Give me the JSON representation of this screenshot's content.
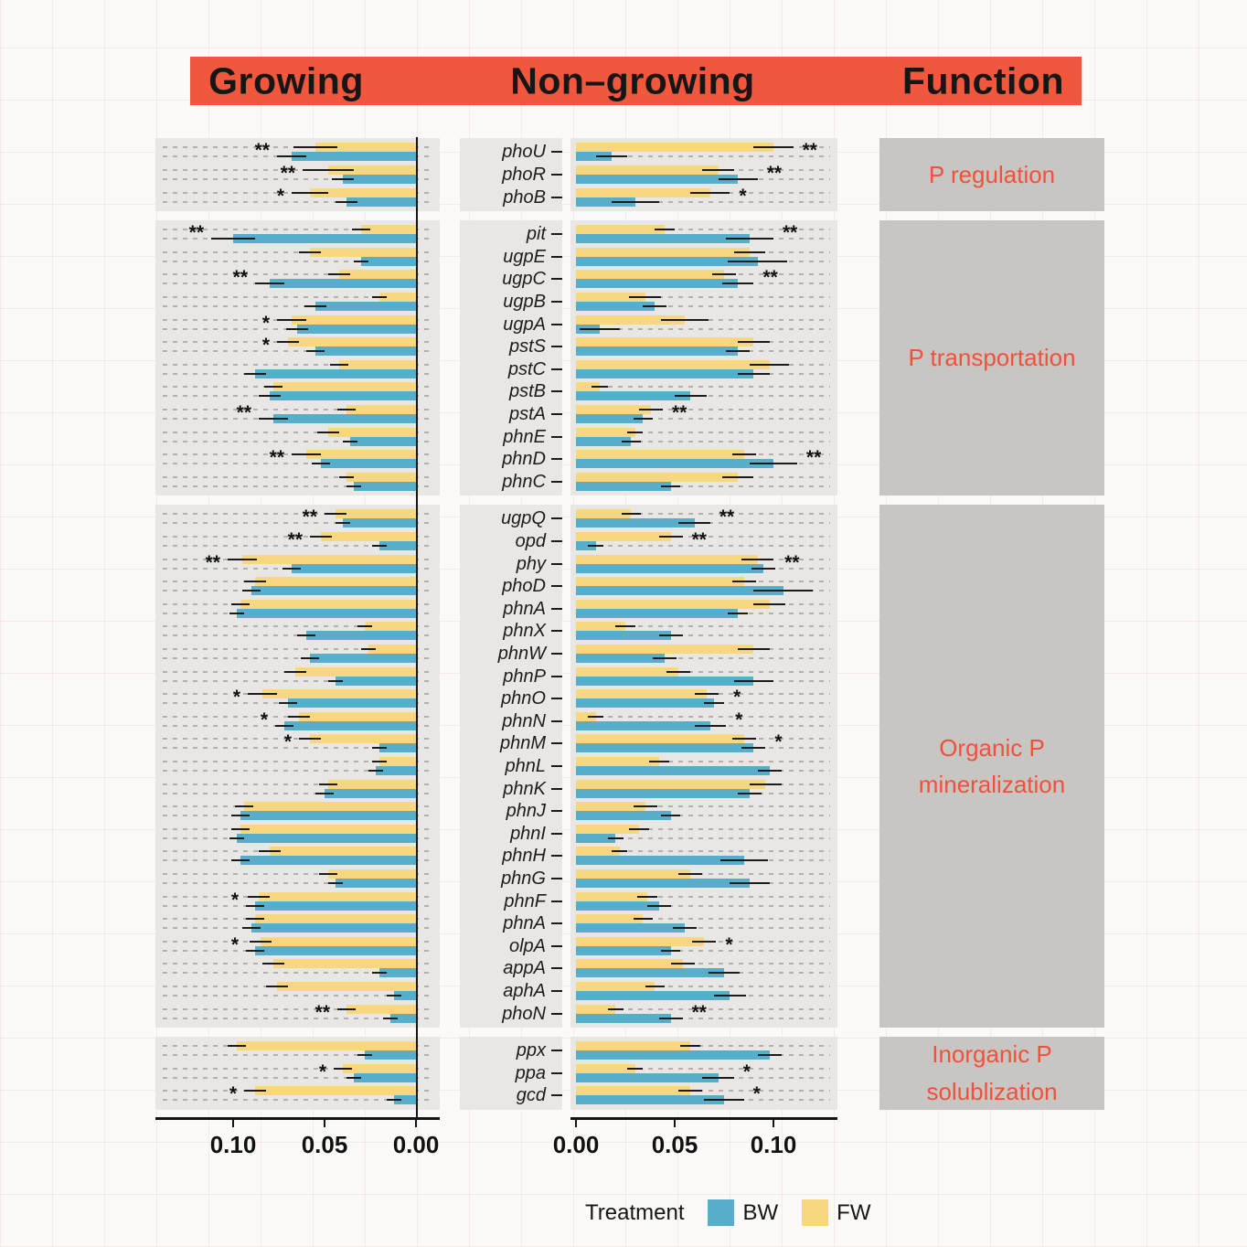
{
  "header": {
    "growing": "Growing",
    "non_growing": "Non–growing",
    "function": "Function"
  },
  "legend": {
    "title": "Treatment",
    "entries": [
      {
        "label": "BW",
        "color": "#57aecb"
      },
      {
        "label": "FW",
        "color": "#f9d77e"
      }
    ]
  },
  "axes": {
    "growing_ticks": [
      "0.10",
      "0.05",
      "0.00"
    ],
    "non_growing_ticks": [
      "0.00",
      "0.05",
      "0.10"
    ]
  },
  "colors": {
    "banner": "#f0573d",
    "panel_bg": "#e9e7e3",
    "function_bg": "#c8c6c3",
    "function_text": "#f2503a",
    "bw": "#57aecb",
    "fw": "#f9d77e",
    "axis": "#151515"
  },
  "chart_data": {
    "type": "bar",
    "orientation": "horizontal",
    "panels": [
      "Growing",
      "Non-growing"
    ],
    "x_max": 0.13,
    "legend_position": "bottom",
    "series": [
      "BW",
      "FW"
    ],
    "significance_note": "* and ** markers shown beyond error bars",
    "groups": [
      {
        "function": "P regulation",
        "genes": [
          {
            "gene": "phoU",
            "growing": {
              "fw": 0.055,
              "fwe": 0.012,
              "bw": 0.068,
              "bwe": 0.008,
              "sig": "**"
            },
            "non_growing": {
              "fw": 0.1,
              "fwe": 0.01,
              "bw": 0.018,
              "bwe": 0.008,
              "sig": "**"
            }
          },
          {
            "gene": "phoR",
            "growing": {
              "fw": 0.048,
              "fwe": 0.014,
              "bw": 0.04,
              "bwe": 0.006,
              "sig": "**"
            },
            "non_growing": {
              "fw": 0.072,
              "fwe": 0.008,
              "bw": 0.082,
              "bwe": 0.01,
              "sig": "**"
            }
          },
          {
            "gene": "phoB",
            "growing": {
              "fw": 0.058,
              "fwe": 0.01,
              "bw": 0.038,
              "bwe": 0.006,
              "sig": "*"
            },
            "non_growing": {
              "fw": 0.068,
              "fwe": 0.01,
              "bw": 0.03,
              "bwe": 0.012,
              "sig": "*"
            }
          }
        ]
      },
      {
        "function": "P transportation",
        "genes": [
          {
            "gene": "pit",
            "growing": {
              "fw": 0.03,
              "fwe": 0.005,
              "bw": 0.1,
              "bwe": 0.012,
              "sig": "**"
            },
            "non_growing": {
              "fw": 0.045,
              "fwe": 0.005,
              "bw": 0.088,
              "bwe": 0.012,
              "sig": "**"
            }
          },
          {
            "gene": "ugpE",
            "growing": {
              "fw": 0.058,
              "fwe": 0.006,
              "bw": 0.03,
              "bwe": 0.004,
              "sig": ""
            },
            "non_growing": {
              "fw": 0.088,
              "fwe": 0.008,
              "bw": 0.092,
              "bwe": 0.015,
              "sig": ""
            }
          },
          {
            "gene": "ugpC",
            "growing": {
              "fw": 0.042,
              "fwe": 0.006,
              "bw": 0.08,
              "bwe": 0.008,
              "sig": "**"
            },
            "non_growing": {
              "fw": 0.075,
              "fwe": 0.006,
              "bw": 0.082,
              "bwe": 0.008,
              "sig": "**"
            }
          },
          {
            "gene": "ugpB",
            "growing": {
              "fw": 0.02,
              "fwe": 0.004,
              "bw": 0.055,
              "bwe": 0.006,
              "sig": ""
            },
            "non_growing": {
              "fw": 0.035,
              "fwe": 0.008,
              "bw": 0.04,
              "bwe": 0.006,
              "sig": ""
            }
          },
          {
            "gene": "ugpA",
            "growing": {
              "fw": 0.068,
              "fwe": 0.008,
              "bw": 0.065,
              "bwe": 0.006,
              "sig": "*"
            },
            "non_growing": {
              "fw": 0.055,
              "fwe": 0.012,
              "bw": 0.012,
              "bwe": 0.01,
              "sig": ""
            }
          },
          {
            "gene": "pstS",
            "growing": {
              "fw": 0.07,
              "fwe": 0.006,
              "bw": 0.055,
              "bwe": 0.005,
              "sig": "*"
            },
            "non_growing": {
              "fw": 0.09,
              "fwe": 0.008,
              "bw": 0.082,
              "bwe": 0.006,
              "sig": ""
            }
          },
          {
            "gene": "pstC",
            "growing": {
              "fw": 0.042,
              "fwe": 0.005,
              "bw": 0.088,
              "bwe": 0.006,
              "sig": ""
            },
            "non_growing": {
              "fw": 0.098,
              "fwe": 0.01,
              "bw": 0.09,
              "bwe": 0.008,
              "sig": ""
            }
          },
          {
            "gene": "pstB",
            "growing": {
              "fw": 0.078,
              "fwe": 0.005,
              "bw": 0.08,
              "bwe": 0.006,
              "sig": ""
            },
            "non_growing": {
              "fw": 0.012,
              "fwe": 0.004,
              "bw": 0.058,
              "bwe": 0.008,
              "sig": ""
            }
          },
          {
            "gene": "pstA",
            "growing": {
              "fw": 0.038,
              "fwe": 0.005,
              "bw": 0.078,
              "bwe": 0.008,
              "sig": "**"
            },
            "non_growing": {
              "fw": 0.038,
              "fwe": 0.006,
              "bw": 0.034,
              "bwe": 0.005,
              "sig": "**"
            }
          },
          {
            "gene": "phnE",
            "growing": {
              "fw": 0.048,
              "fwe": 0.006,
              "bw": 0.036,
              "bwe": 0.004,
              "sig": ""
            },
            "non_growing": {
              "fw": 0.03,
              "fwe": 0.004,
              "bw": 0.028,
              "bwe": 0.005,
              "sig": ""
            }
          },
          {
            "gene": "phnD",
            "growing": {
              "fw": 0.06,
              "fwe": 0.008,
              "bw": 0.052,
              "bwe": 0.005,
              "sig": "**"
            },
            "non_growing": {
              "fw": 0.085,
              "fwe": 0.006,
              "bw": 0.1,
              "bwe": 0.012,
              "sig": "**"
            }
          },
          {
            "gene": "phnC",
            "growing": {
              "fw": 0.038,
              "fwe": 0.004,
              "bw": 0.034,
              "bwe": 0.004,
              "sig": ""
            },
            "non_growing": {
              "fw": 0.082,
              "fwe": 0.008,
              "bw": 0.048,
              "bwe": 0.005,
              "sig": ""
            }
          }
        ]
      },
      {
        "function": "Organic P\nmineralization",
        "genes": [
          {
            "gene": "ugpQ",
            "growing": {
              "fw": 0.044,
              "fwe": 0.006,
              "bw": 0.04,
              "bwe": 0.004,
              "sig": "**"
            },
            "non_growing": {
              "fw": 0.028,
              "fwe": 0.005,
              "bw": 0.06,
              "bwe": 0.008,
              "sig": "**"
            }
          },
          {
            "gene": "opd",
            "growing": {
              "fw": 0.052,
              "fwe": 0.006,
              "bw": 0.02,
              "bwe": 0.004,
              "sig": "**"
            },
            "non_growing": {
              "fw": 0.048,
              "fwe": 0.006,
              "bw": 0.01,
              "bwe": 0.004,
              "sig": "**"
            }
          },
          {
            "gene": "phy",
            "growing": {
              "fw": 0.095,
              "fwe": 0.008,
              "bw": 0.068,
              "bwe": 0.005,
              "sig": "**"
            },
            "non_growing": {
              "fw": 0.092,
              "fwe": 0.008,
              "bw": 0.095,
              "bwe": 0.006,
              "sig": "**"
            }
          },
          {
            "gene": "phoD",
            "growing": {
              "fw": 0.088,
              "fwe": 0.006,
              "bw": 0.09,
              "bwe": 0.005,
              "sig": ""
            },
            "non_growing": {
              "fw": 0.085,
              "fwe": 0.006,
              "bw": 0.105,
              "bwe": 0.015,
              "sig": ""
            }
          },
          {
            "gene": "phnA",
            "growing": {
              "fw": 0.096,
              "fwe": 0.005,
              "bw": 0.098,
              "bwe": 0.004,
              "sig": ""
            },
            "non_growing": {
              "fw": 0.098,
              "fwe": 0.008,
              "bw": 0.082,
              "bwe": 0.005,
              "sig": ""
            }
          },
          {
            "gene": "phnX",
            "growing": {
              "fw": 0.028,
              "fwe": 0.004,
              "bw": 0.06,
              "bwe": 0.005,
              "sig": ""
            },
            "non_growing": {
              "fw": 0.025,
              "fwe": 0.005,
              "bw": 0.048,
              "bwe": 0.006,
              "sig": ""
            }
          },
          {
            "gene": "phnW",
            "growing": {
              "fw": 0.026,
              "fwe": 0.004,
              "bw": 0.058,
              "bwe": 0.005,
              "sig": ""
            },
            "non_growing": {
              "fw": 0.09,
              "fwe": 0.008,
              "bw": 0.045,
              "bwe": 0.006,
              "sig": ""
            }
          },
          {
            "gene": "phnP",
            "growing": {
              "fw": 0.066,
              "fwe": 0.006,
              "bw": 0.044,
              "bwe": 0.004,
              "sig": ""
            },
            "non_growing": {
              "fw": 0.052,
              "fwe": 0.006,
              "bw": 0.09,
              "bwe": 0.01,
              "sig": ""
            }
          },
          {
            "gene": "phnO",
            "growing": {
              "fw": 0.084,
              "fwe": 0.008,
              "bw": 0.07,
              "bwe": 0.005,
              "sig": "*"
            },
            "non_growing": {
              "fw": 0.066,
              "fwe": 0.006,
              "bw": 0.07,
              "bwe": 0.005,
              "sig": "*"
            }
          },
          {
            "gene": "phnN",
            "growing": {
              "fw": 0.064,
              "fwe": 0.006,
              "bw": 0.072,
              "bwe": 0.005,
              "sig": "*"
            },
            "non_growing": {
              "fw": 0.01,
              "fwe": 0.004,
              "bw": 0.068,
              "bwe": 0.008,
              "sig": "*"
            }
          },
          {
            "gene": "phnM",
            "growing": {
              "fw": 0.058,
              "fwe": 0.006,
              "bw": 0.02,
              "bwe": 0.004,
              "sig": "*"
            },
            "non_growing": {
              "fw": 0.085,
              "fwe": 0.006,
              "bw": 0.09,
              "bwe": 0.006,
              "sig": "*"
            }
          },
          {
            "gene": "phnL",
            "growing": {
              "fw": 0.02,
              "fwe": 0.004,
              "bw": 0.022,
              "bwe": 0.004,
              "sig": ""
            },
            "non_growing": {
              "fw": 0.042,
              "fwe": 0.005,
              "bw": 0.098,
              "bwe": 0.006,
              "sig": ""
            }
          },
          {
            "gene": "phnK",
            "growing": {
              "fw": 0.048,
              "fwe": 0.005,
              "bw": 0.05,
              "bwe": 0.005,
              "sig": ""
            },
            "non_growing": {
              "fw": 0.096,
              "fwe": 0.008,
              "bw": 0.088,
              "bwe": 0.006,
              "sig": ""
            }
          },
          {
            "gene": "phnJ",
            "growing": {
              "fw": 0.094,
              "fwe": 0.005,
              "bw": 0.096,
              "bwe": 0.005,
              "sig": ""
            },
            "non_growing": {
              "fw": 0.035,
              "fwe": 0.006,
              "bw": 0.048,
              "bwe": 0.005,
              "sig": ""
            }
          },
          {
            "gene": "phnI",
            "growing": {
              "fw": 0.096,
              "fwe": 0.005,
              "bw": 0.098,
              "bwe": 0.004,
              "sig": ""
            },
            "non_growing": {
              "fw": 0.032,
              "fwe": 0.005,
              "bw": 0.02,
              "bwe": 0.004,
              "sig": ""
            }
          },
          {
            "gene": "phnH",
            "growing": {
              "fw": 0.08,
              "fwe": 0.006,
              "bw": 0.096,
              "bwe": 0.005,
              "sig": ""
            },
            "non_growing": {
              "fw": 0.022,
              "fwe": 0.004,
              "bw": 0.085,
              "bwe": 0.012,
              "sig": ""
            }
          },
          {
            "gene": "phnG",
            "growing": {
              "fw": 0.048,
              "fwe": 0.005,
              "bw": 0.044,
              "bwe": 0.004,
              "sig": ""
            },
            "non_growing": {
              "fw": 0.058,
              "fwe": 0.006,
              "bw": 0.088,
              "bwe": 0.01,
              "sig": ""
            }
          },
          {
            "gene": "phnF",
            "growing": {
              "fw": 0.086,
              "fwe": 0.006,
              "bw": 0.088,
              "bwe": 0.005,
              "sig": "*"
            },
            "non_growing": {
              "fw": 0.036,
              "fwe": 0.005,
              "bw": 0.042,
              "bwe": 0.006,
              "sig": ""
            }
          },
          {
            "gene": "phnA",
            "growing": {
              "fw": 0.088,
              "fwe": 0.005,
              "bw": 0.09,
              "bwe": 0.005,
              "sig": ""
            },
            "non_growing": {
              "fw": 0.034,
              "fwe": 0.005,
              "bw": 0.055,
              "bwe": 0.006,
              "sig": ""
            }
          },
          {
            "gene": "olpA",
            "growing": {
              "fw": 0.085,
              "fwe": 0.006,
              "bw": 0.088,
              "bwe": 0.005,
              "sig": "*"
            },
            "non_growing": {
              "fw": 0.065,
              "fwe": 0.006,
              "bw": 0.048,
              "bwe": 0.005,
              "sig": "*"
            }
          },
          {
            "gene": "appA",
            "growing": {
              "fw": 0.078,
              "fwe": 0.006,
              "bw": 0.02,
              "bwe": 0.004,
              "sig": ""
            },
            "non_growing": {
              "fw": 0.054,
              "fwe": 0.006,
              "bw": 0.075,
              "bwe": 0.008,
              "sig": ""
            }
          },
          {
            "gene": "aphA",
            "growing": {
              "fw": 0.076,
              "fwe": 0.006,
              "bw": 0.012,
              "bwe": 0.004,
              "sig": ""
            },
            "non_growing": {
              "fw": 0.04,
              "fwe": 0.005,
              "bw": 0.078,
              "bwe": 0.008,
              "sig": ""
            }
          },
          {
            "gene": "phoN",
            "growing": {
              "fw": 0.038,
              "fwe": 0.005,
              "bw": 0.014,
              "bwe": 0.004,
              "sig": "**"
            },
            "non_growing": {
              "fw": 0.02,
              "fwe": 0.004,
              "bw": 0.048,
              "bwe": 0.006,
              "sig": "**"
            }
          }
        ]
      },
      {
        "function": "Inorganic P\nsolublization",
        "genes": [
          {
            "gene": "ppx",
            "growing": {
              "fw": 0.098,
              "fwe": 0.005,
              "bw": 0.028,
              "bwe": 0.004,
              "sig": ""
            },
            "non_growing": {
              "fw": 0.058,
              "fwe": 0.005,
              "bw": 0.098,
              "bwe": 0.006,
              "sig": ""
            }
          },
          {
            "gene": "ppa",
            "growing": {
              "fw": 0.04,
              "fwe": 0.005,
              "bw": 0.034,
              "bwe": 0.004,
              "sig": "*"
            },
            "non_growing": {
              "fw": 0.03,
              "fwe": 0.004,
              "bw": 0.072,
              "bwe": 0.008,
              "sig": "*"
            }
          },
          {
            "gene": "gcd",
            "growing": {
              "fw": 0.088,
              "fwe": 0.006,
              "bw": 0.012,
              "bwe": 0.004,
              "sig": "*"
            },
            "non_growing": {
              "fw": 0.058,
              "fwe": 0.006,
              "bw": 0.075,
              "bwe": 0.01,
              "sig": "*"
            }
          }
        ]
      }
    ]
  }
}
